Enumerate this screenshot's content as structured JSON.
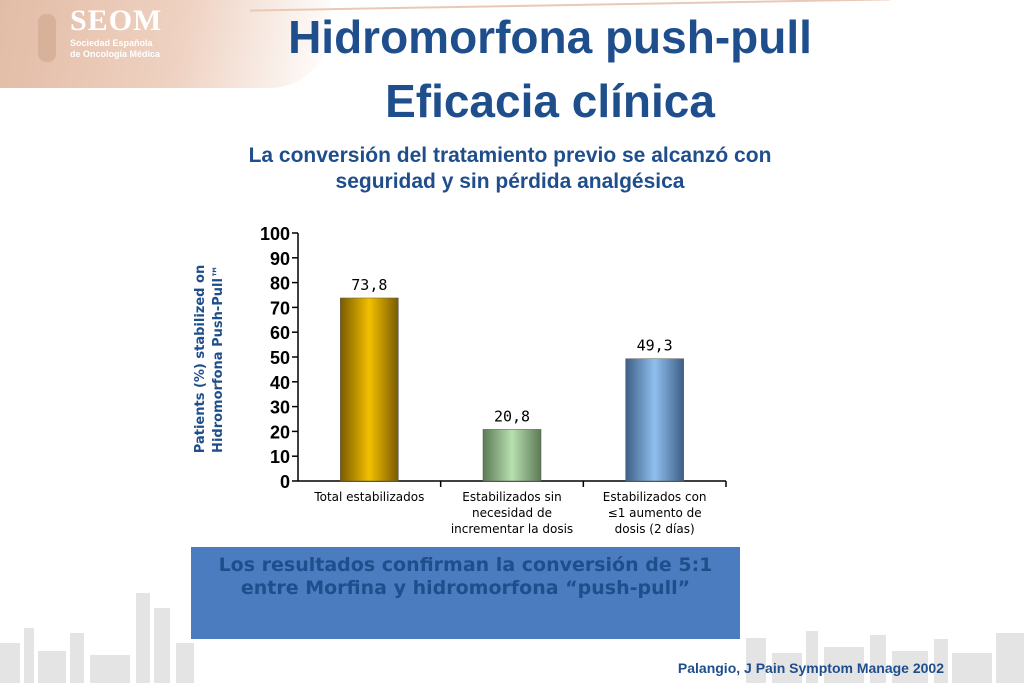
{
  "logo": {
    "title": "SEOM",
    "subtitle_line1": "Sociedad Española",
    "subtitle_line2": "de Oncología Médica"
  },
  "header": {
    "title_line1": "Hidromorfona  push-pull",
    "title_line2": "Eficacia clínica",
    "subtitle": "La conversión del tratamiento previo se alcanzó con\nseguridad y sin pérdida analgésica"
  },
  "colors": {
    "title": "#1f4e8c",
    "bar1": "#f2c000",
    "bar2": "#b8e0b0",
    "bar3": "#8fbfef",
    "box": "#4a7cbf"
  },
  "chart_data": {
    "type": "bar",
    "ylabel_line1": "Patients (%) stabilized on",
    "ylabel_line2": "Hidromorfona Push-Pull™",
    "ylim": [
      0,
      100
    ],
    "yticks": [
      "0",
      "10",
      "20",
      "30",
      "40",
      "50",
      "60",
      "70",
      "80",
      "90",
      "100"
    ],
    "categories": [
      [
        "Total estabilizados"
      ],
      [
        "Estabilizados sin",
        "necesidad de",
        "incrementar la dosis"
      ],
      [
        "Estabilizados con",
        "≤1 aumento de",
        "dosis (2 días)"
      ]
    ],
    "values": [
      73.8,
      20.8,
      49.3
    ],
    "data_labels": [
      "73,8",
      "20,8",
      "49,3"
    ]
  },
  "conclusion": "Los resultados confirman la conversión de 5:1\nentre Morfina y hidromorfona “push-pull”",
  "citation": "Palangio, J Pain Symptom Manage 2002"
}
